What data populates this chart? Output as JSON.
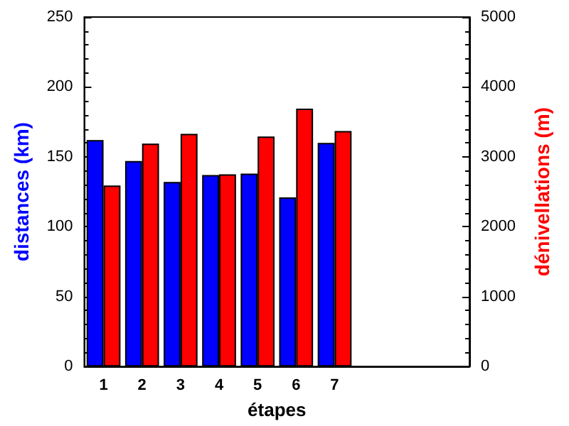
{
  "chart_data": {
    "type": "bar",
    "xlabel": "étapes",
    "ylabel": "distances (km)",
    "y2label": "dénivellations (m)",
    "categories": [
      "1",
      "2",
      "3",
      "4",
      "5",
      "6",
      "7",
      null,
      null,
      null
    ],
    "series": [
      {
        "color": "#0000ff",
        "values": [
          162,
          147,
          132,
          137,
          138,
          121,
          160,
          null,
          null,
          null
        ]
      },
      {
        "color": "#ff0000",
        "axis": "y2",
        "values": [
          2590,
          3190,
          3330,
          2750,
          3290,
          3690,
          3370,
          null,
          null,
          null
        ]
      }
    ],
    "ylim": [
      0,
      250
    ],
    "yticks": [
      0,
      50,
      100,
      150,
      200,
      250
    ],
    "y2lim": [
      0,
      5000
    ],
    "y2ticks": [
      0,
      1000,
      2000,
      3000,
      4000,
      5000
    ],
    "grid": false
  }
}
